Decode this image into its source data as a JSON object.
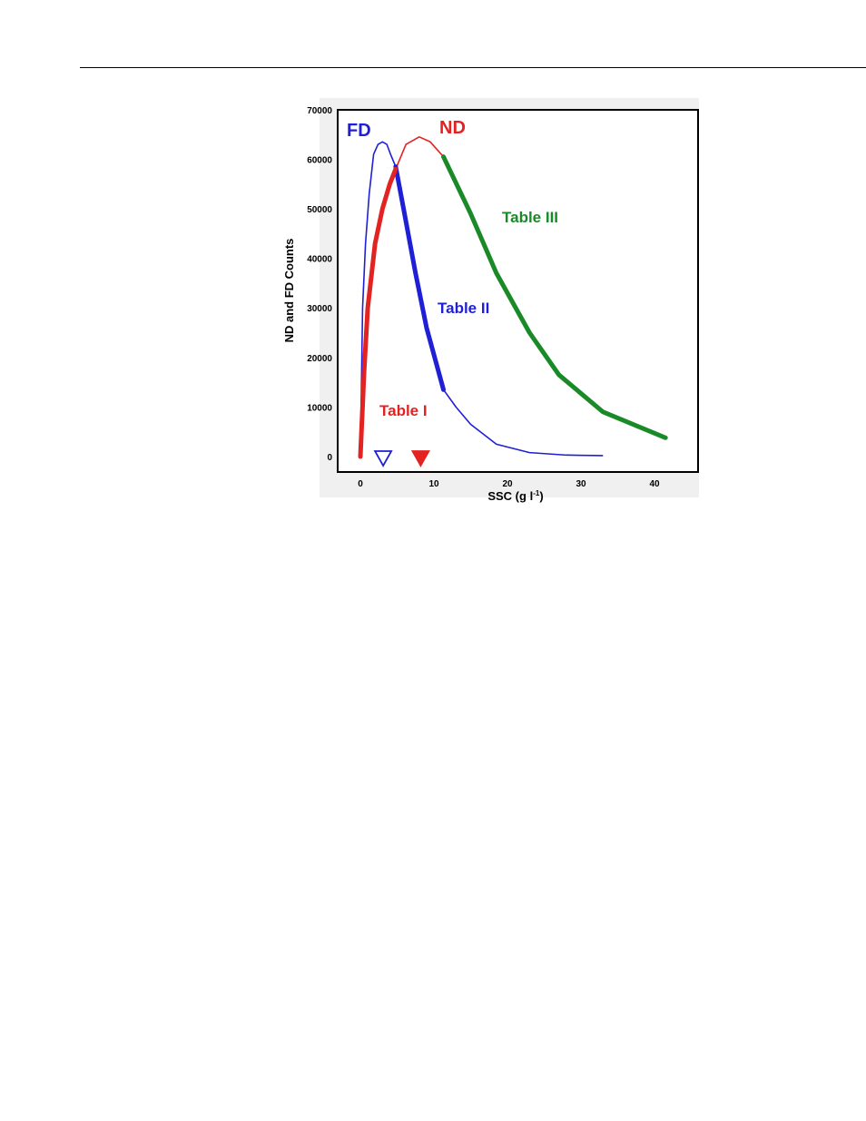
{
  "chart_data": {
    "type": "line",
    "xlabel": "SSC (g l",
    "xlabel_sup": "-1",
    "xlabel_close": ")",
    "ylabel": "ND and FD Counts",
    "xlim": [
      -3,
      46
    ],
    "ylim": [
      -3000,
      70000
    ],
    "x_ticks": [
      0,
      10,
      20,
      30,
      40
    ],
    "y_ticks": [
      0,
      10000,
      20000,
      30000,
      40000,
      50000,
      60000,
      70000
    ],
    "grid": false,
    "series": [
      {
        "name": "FD",
        "color": "#1f1fd6",
        "x": [
          0,
          0.3,
          0.7,
          1.2,
          1.8,
          2.4,
          3.0,
          3.6,
          4.1,
          4.8,
          6.0,
          7.5,
          9.0,
          11.3,
          13.0,
          15.0,
          18.5,
          23.0,
          28.0,
          33.0
        ],
        "y": [
          0,
          30000,
          43000,
          53000,
          61000,
          63000,
          63500,
          63000,
          61000,
          58500,
          49000,
          37000,
          26000,
          13500,
          10000,
          6500,
          2500,
          800,
          300,
          200
        ],
        "bold_range": [
          4.8,
          11.3
        ]
      },
      {
        "name": "ND",
        "color": "#e32222",
        "x": [
          0,
          0.5,
          1.0,
          2.0,
          3.0,
          4.0,
          4.8,
          6.2,
          8.0,
          9.5,
          11.3
        ],
        "y": [
          0,
          17000,
          30000,
          43000,
          50000,
          55000,
          58000,
          63000,
          64500,
          63500,
          60500
        ],
        "bold_range": [
          0,
          4.8
        ]
      },
      {
        "name": "Table III",
        "color": "#1a8a28",
        "x": [
          11.3,
          15.0,
          18.5,
          23.0,
          27.0,
          33.0,
          41.5
        ],
        "y": [
          60500,
          49000,
          37000,
          25000,
          16500,
          9000,
          3800
        ],
        "bold_range": [
          11.3,
          41.5
        ]
      }
    ],
    "annotations": [
      {
        "text": "FD",
        "color": "#1f1fd6",
        "size": 20
      },
      {
        "text": "ND",
        "color": "#e32222",
        "size": 20
      },
      {
        "text": "Table I",
        "color": "#e32222",
        "size": 17
      },
      {
        "text": "Table II",
        "color": "#1f1fd6",
        "size": 17
      },
      {
        "text": "Table III",
        "color": "#1a8a28",
        "size": 17
      }
    ],
    "markers": [
      {
        "name": "fd-marker",
        "shape": "open-triangle-down",
        "color": "#1f1fd6",
        "x": 3.1
      },
      {
        "name": "nd-marker",
        "shape": "filled-triangle-down",
        "color": "#e32222",
        "x": 8.2
      }
    ]
  }
}
